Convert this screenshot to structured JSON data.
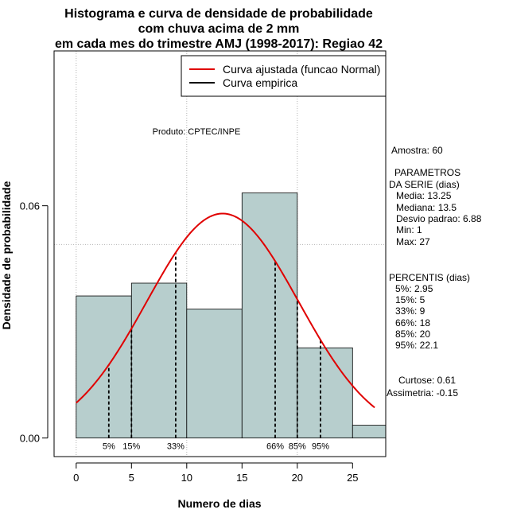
{
  "chart_data": {
    "type": "bar",
    "title_lines": [
      "Histograma e curva de densidade de probabilidade",
      "com chuva acima de 2 mm",
      "em cada mes do trimestre AMJ (1998-2017): Regiao 42"
    ],
    "xlabel": "Numero de dias",
    "ylabel": "Densidade de probabilidade",
    "xlim": [
      -2,
      28
    ],
    "ylim": [
      -0.0048,
      0.1
    ],
    "x_ticks": [
      0,
      5,
      10,
      15,
      20,
      25
    ],
    "y_ticks": [
      0.0,
      0.06
    ],
    "y_tick_labels": [
      "0.00",
      "0.06"
    ],
    "grid_x": [
      0,
      10,
      20
    ],
    "grid_y": [
      0.1,
      0.05
    ],
    "bar_color": "#b7cecd",
    "bins": [
      {
        "start": 0,
        "end": 5,
        "density": 0.0367
      },
      {
        "start": 5,
        "end": 10,
        "density": 0.04
      },
      {
        "start": 10,
        "end": 15,
        "density": 0.0333
      },
      {
        "start": 15,
        "end": 20,
        "density": 0.0633
      },
      {
        "start": 20,
        "end": 25,
        "density": 0.0233
      },
      {
        "start": 25,
        "end": 30,
        "density": 0.0033
      }
    ],
    "normal_curve": {
      "mean": 13.25,
      "sd": 6.88,
      "x_range": [
        0,
        27
      ],
      "color": "#e00000"
    },
    "percentile_lines": [
      {
        "label": "5%",
        "x": 2.95
      },
      {
        "label": "15%",
        "x": 5
      },
      {
        "label": "33%",
        "x": 9
      },
      {
        "label": "66%",
        "x": 18
      },
      {
        "label": "85%",
        "x": 20
      },
      {
        "label": "95%",
        "x": 22.1
      }
    ],
    "legend": {
      "position": "top-right",
      "entries": [
        {
          "label": "Curva ajustada (funcao Normal)",
          "color": "#e00000"
        },
        {
          "label": "Curva empirica",
          "color": "#000000"
        }
      ]
    },
    "annotation": "Produto: CPTEC/INPE"
  },
  "stats": {
    "sample": "Amostra: 60",
    "params_header": [
      "PARAMETROS",
      "DA SERIE (dias)"
    ],
    "params": [
      "Media: 13.25",
      "Mediana: 13.5",
      "Desvio padrao: 6.88",
      "Min: 1",
      "Max: 27"
    ],
    "percentis_header": "PERCENTIS (dias)",
    "percentis": [
      "5%: 2.95",
      "15%: 5",
      "33%: 9",
      "66%: 18",
      "85%: 20",
      "95%: 22.1"
    ],
    "curtose": "Curtose: 0.61",
    "assimetria": "Assimetria: -0.15"
  }
}
